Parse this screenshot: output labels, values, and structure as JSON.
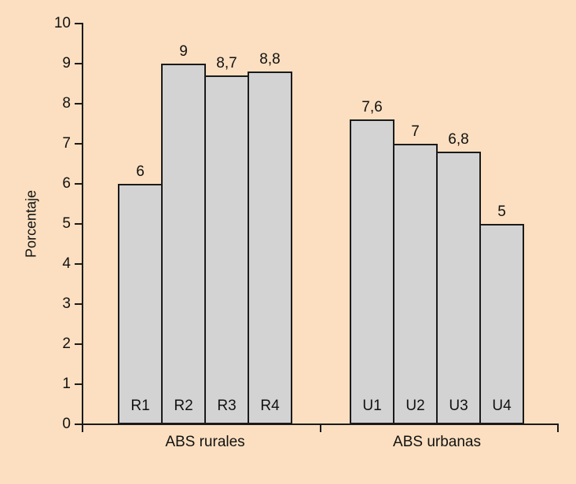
{
  "chart_data": {
    "type": "bar",
    "title": "",
    "xlabel": "",
    "ylabel": "Porcentaje",
    "ylim": [
      0,
      10
    ],
    "yticks": [
      0,
      1,
      2,
      3,
      4,
      5,
      6,
      7,
      8,
      9,
      10
    ],
    "grid": false,
    "legend": "none",
    "decimal_separator": ",",
    "bar_fill_color": "#d3d3d3",
    "background_color": "#fbdfc0",
    "groups": [
      {
        "label": "ABS rurales",
        "bars": [
          {
            "id": "R1",
            "value": 6,
            "display": "6"
          },
          {
            "id": "R2",
            "value": 9,
            "display": "9"
          },
          {
            "id": "R3",
            "value": 8.7,
            "display": "8,7"
          },
          {
            "id": "R4",
            "value": 8.8,
            "display": "8,8"
          }
        ]
      },
      {
        "label": "ABS urbanas",
        "bars": [
          {
            "id": "U1",
            "value": 7.6,
            "display": "7,6"
          },
          {
            "id": "U2",
            "value": 7,
            "display": "7"
          },
          {
            "id": "U3",
            "value": 6.8,
            "display": "6,8"
          },
          {
            "id": "U4",
            "value": 5,
            "display": "5"
          }
        ]
      }
    ]
  }
}
